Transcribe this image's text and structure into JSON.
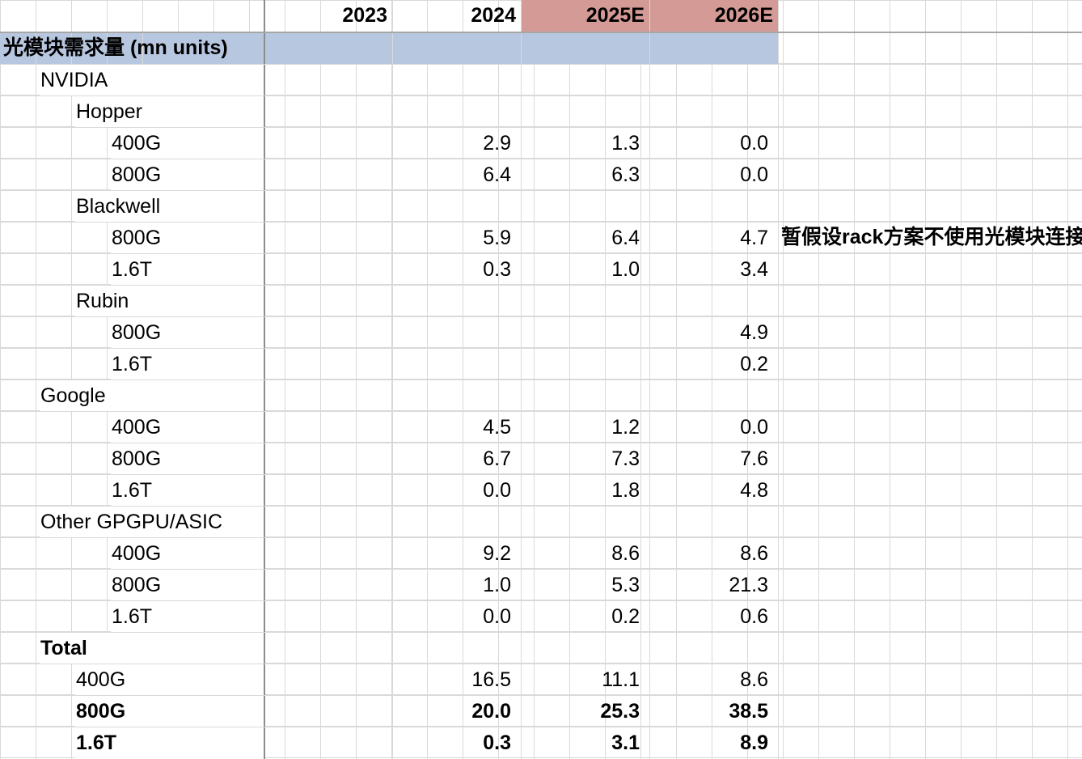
{
  "years": [
    "2023",
    "2024",
    "2025E",
    "2026E"
  ],
  "highlight_color": "#d49a96",
  "section_color": "#b8c7e0",
  "section_title": "光模块需求量 (mn units)",
  "note": "暂假设rack方案不使用光模块连接",
  "rows": [
    {
      "label": "NVIDIA",
      "indent": 1,
      "values": [
        "",
        "",
        "",
        ""
      ]
    },
    {
      "label": "Hopper",
      "indent": 2,
      "values": [
        "",
        "",
        "",
        ""
      ]
    },
    {
      "label": "400G",
      "indent": 3,
      "values": [
        "",
        "2.9",
        "1.3",
        "0.0"
      ]
    },
    {
      "label": "800G",
      "indent": 3,
      "values": [
        "",
        "6.4",
        "6.3",
        "0.0"
      ]
    },
    {
      "label": "Blackwell",
      "indent": 2,
      "values": [
        "",
        "",
        "",
        ""
      ]
    },
    {
      "label": "800G",
      "indent": 3,
      "values": [
        "",
        "5.9",
        "6.4",
        "4.7"
      ]
    },
    {
      "label": "1.6T",
      "indent": 3,
      "values": [
        "",
        "0.3",
        "1.0",
        "3.4"
      ]
    },
    {
      "label": "Rubin",
      "indent": 2,
      "values": [
        "",
        "",
        "",
        ""
      ]
    },
    {
      "label": "800G",
      "indent": 3,
      "values": [
        "",
        "",
        "",
        "4.9"
      ]
    },
    {
      "label": "1.6T",
      "indent": 3,
      "values": [
        "",
        "",
        "",
        "0.2"
      ]
    },
    {
      "label": "Google",
      "indent": 1,
      "values": [
        "",
        "",
        "",
        ""
      ]
    },
    {
      "label": "400G",
      "indent": 3,
      "values": [
        "",
        "4.5",
        "1.2",
        "0.0"
      ]
    },
    {
      "label": "800G",
      "indent": 3,
      "values": [
        "",
        "6.7",
        "7.3",
        "7.6"
      ]
    },
    {
      "label": "1.6T",
      "indent": 3,
      "values": [
        "",
        "0.0",
        "1.8",
        "4.8"
      ]
    },
    {
      "label": "Other GPGPU/ASIC",
      "indent": 1,
      "values": [
        "",
        "",
        "",
        ""
      ]
    },
    {
      "label": "400G",
      "indent": 3,
      "values": [
        "",
        "9.2",
        "8.6",
        "8.6"
      ]
    },
    {
      "label": "800G",
      "indent": 3,
      "values": [
        "",
        "1.0",
        "5.3",
        "21.3"
      ]
    },
    {
      "label": "1.6T",
      "indent": 3,
      "values": [
        "",
        "0.0",
        "0.2",
        "0.6"
      ]
    },
    {
      "label": "Total",
      "indent": 1,
      "bold": true,
      "values": [
        "",
        "",
        "",
        ""
      ]
    },
    {
      "label": "400G",
      "indent": 2,
      "values": [
        "",
        "16.5",
        "11.1",
        "8.6"
      ]
    },
    {
      "label": "800G",
      "indent": 2,
      "bold": true,
      "values": [
        "",
        "20.0",
        "25.3",
        "38.5"
      ]
    },
    {
      "label": "1.6T",
      "indent": 2,
      "bold": true,
      "values": [
        "",
        "0.3",
        "3.1",
        "8.9"
      ]
    }
  ]
}
